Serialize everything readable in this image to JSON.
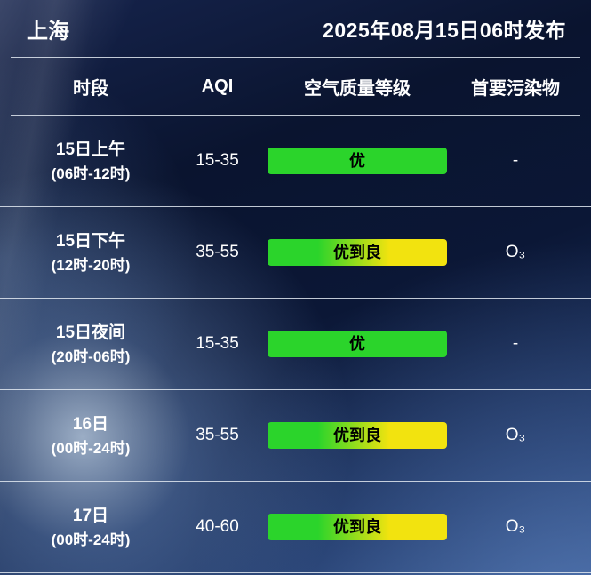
{
  "header": {
    "city": "上海",
    "published": "2025年08月15日06时发布"
  },
  "table": {
    "columns": [
      "时段",
      "AQI",
      "空气质量等级",
      "首要污染物"
    ],
    "rows": [
      {
        "period": "15日上午",
        "hours": "(06时-12时)",
        "aqi": "15-35",
        "level": "优",
        "level_style": "green",
        "pollutant": "-"
      },
      {
        "period": "15日下午",
        "hours": "(12时-20时)",
        "aqi": "35-55",
        "level": "优到良",
        "level_style": "green-yellow",
        "pollutant": "O₃"
      },
      {
        "period": "15日夜间",
        "hours": "(20时-06时)",
        "aqi": "15-35",
        "level": "优",
        "level_style": "green",
        "pollutant": "-"
      },
      {
        "period": "16日",
        "hours": "(00时-24时)",
        "aqi": "35-55",
        "level": "优到良",
        "level_style": "green-yellow",
        "pollutant": "O₃"
      },
      {
        "period": "17日",
        "hours": "(00时-24时)",
        "aqi": "40-60",
        "level": "优到良",
        "level_style": "green-yellow",
        "pollutant": "O₃"
      }
    ]
  },
  "colors": {
    "badge_green": "#2bd42b",
    "badge_yellow": "#f2e30f",
    "badge_text": "#000000",
    "text": "#ffffff",
    "divider": "#e1e8f0"
  },
  "chart_data": {
    "type": "table",
    "title": "上海 空气质量预报 2025年08月15日06时发布",
    "columns": [
      "时段",
      "AQI",
      "空气质量等级",
      "首要污染物"
    ],
    "rows": [
      [
        "15日上午 (06时-12时)",
        "15-35",
        "优",
        "-"
      ],
      [
        "15日下午 (12时-20时)",
        "35-55",
        "优到良",
        "O₃"
      ],
      [
        "15日夜间 (20时-06时)",
        "15-35",
        "优",
        "-"
      ],
      [
        "16日 (00时-24时)",
        "35-55",
        "优到良",
        "O₃"
      ],
      [
        "17日 (00时-24时)",
        "40-60",
        "优到良",
        "O₃"
      ]
    ],
    "legend": {
      "优": "green",
      "优到良": "green-to-yellow gradient"
    }
  }
}
